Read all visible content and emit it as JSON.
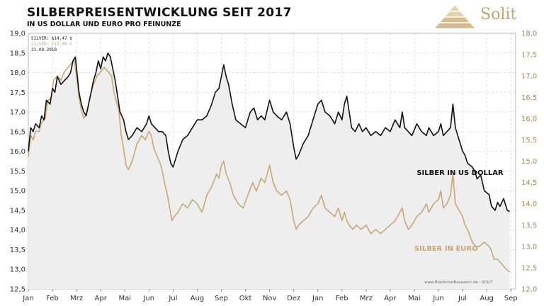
{
  "header": {
    "title": "SILBERPREISENTWICKLUNG SEIT 2017",
    "subtitle": "IN US DOLLAR UND EURO PRO FEINUNZE",
    "brand_name": "Solit"
  },
  "colors": {
    "usd_line": "#111111",
    "eur_line": "#c9a772",
    "area_fill": "#eeeeee",
    "grid": "#d8d8d8",
    "axis_right": "#a88752"
  },
  "chart_data": {
    "type": "line",
    "title": "SILBERPREISENTWICKLUNG SEIT 2017",
    "subtitle": "IN US DOLLAR UND EURO PRO FEINUNZE",
    "x_unit": "months since Jan 2017",
    "x_ticks": [
      {
        "label": "Jan",
        "x": 0
      },
      {
        "label": "Feb",
        "x": 1
      },
      {
        "label": "Mrz",
        "x": 2
      },
      {
        "label": "Apr",
        "x": 3
      },
      {
        "label": "Mai",
        "x": 4
      },
      {
        "label": "Jun",
        "x": 5
      },
      {
        "label": "Jul",
        "x": 6
      },
      {
        "label": "Aug",
        "x": 7
      },
      {
        "label": "Sep",
        "x": 8
      },
      {
        "label": "Okt",
        "x": 9
      },
      {
        "label": "Nov",
        "x": 10
      },
      {
        "label": "Dez",
        "x": 11
      },
      {
        "label": "Jan",
        "x": 12
      },
      {
        "label": "Feb",
        "x": 13
      },
      {
        "label": "Mrz",
        "x": 14
      },
      {
        "label": "Apr",
        "x": 15
      },
      {
        "label": "Mai",
        "x": 16
      },
      {
        "label": "Jun",
        "x": 17
      },
      {
        "label": "Jul",
        "x": 18
      },
      {
        "label": "Aug",
        "x": 19
      },
      {
        "label": "Sep",
        "x": 20
      }
    ],
    "xlim": [
      0,
      20.2
    ],
    "y_left": {
      "ylim": [
        12.5,
        19.0
      ],
      "ticks": [
        "19,0",
        "18,5",
        "18,0",
        "17,5",
        "17,0",
        "16,5",
        "16,0",
        "15,5",
        "15,0",
        "14,5",
        "14,0",
        "13,5",
        "13,0",
        "12,5"
      ]
    },
    "y_right": {
      "ylim": [
        12.0,
        18.0
      ],
      "ticks": [
        "18,0",
        "17,5",
        "17,0",
        "16,5",
        "16,0",
        "15,5",
        "15,0",
        "14,5",
        "14,0",
        "13,5",
        "13,0",
        "12,5",
        "12,0"
      ]
    },
    "grid": true,
    "legend": {
      "position": "top-left",
      "lines": [
        "SILVER: $14,47 $",
        "SILVER: €12,40 €",
        "31.08.2018"
      ]
    },
    "series_labels": {
      "usd": "SILBER IN US DOLLAR",
      "eur": "SILBER IN EURO"
    },
    "source": "www.BlackchatResearch.de - SOLIT",
    "series": [
      {
        "name": "SILBER IN US DOLLAR",
        "axis": "left",
        "points": [
          [
            0.0,
            16.0
          ],
          [
            0.1,
            16.6
          ],
          [
            0.2,
            16.5
          ],
          [
            0.3,
            16.7
          ],
          [
            0.45,
            16.6
          ],
          [
            0.55,
            16.9
          ],
          [
            0.65,
            16.8
          ],
          [
            0.75,
            17.3
          ],
          [
            0.9,
            17.2
          ],
          [
            1.0,
            17.6
          ],
          [
            1.1,
            17.5
          ],
          [
            1.2,
            17.9
          ],
          [
            1.35,
            17.7
          ],
          [
            1.5,
            17.8
          ],
          [
            1.65,
            17.9
          ],
          [
            1.75,
            18.0
          ],
          [
            1.85,
            18.3
          ],
          [
            1.95,
            18.4
          ],
          [
            2.0,
            18.1
          ],
          [
            2.1,
            17.5
          ],
          [
            2.2,
            17.2
          ],
          [
            2.3,
            17.0
          ],
          [
            2.4,
            16.9
          ],
          [
            2.5,
            17.2
          ],
          [
            2.6,
            17.5
          ],
          [
            2.7,
            17.8
          ],
          [
            2.8,
            18.0
          ],
          [
            2.9,
            18.3
          ],
          [
            3.0,
            18.1
          ],
          [
            3.1,
            18.4
          ],
          [
            3.2,
            18.3
          ],
          [
            3.3,
            18.5
          ],
          [
            3.4,
            18.4
          ],
          [
            3.5,
            18.1
          ],
          [
            3.6,
            17.8
          ],
          [
            3.7,
            17.4
          ],
          [
            3.8,
            17.0
          ],
          [
            3.95,
            16.8
          ],
          [
            4.05,
            16.5
          ],
          [
            4.15,
            16.3
          ],
          [
            4.3,
            16.4
          ],
          [
            4.5,
            16.6
          ],
          [
            4.7,
            16.5
          ],
          [
            4.9,
            16.7
          ],
          [
            5.0,
            16.9
          ],
          [
            5.1,
            16.7
          ],
          [
            5.25,
            16.6
          ],
          [
            5.4,
            16.5
          ],
          [
            5.55,
            16.5
          ],
          [
            5.7,
            16.4
          ],
          [
            5.8,
            16.0
          ],
          [
            5.9,
            15.7
          ],
          [
            6.0,
            15.6
          ],
          [
            6.1,
            15.8
          ],
          [
            6.2,
            16.0
          ],
          [
            6.4,
            16.3
          ],
          [
            6.6,
            16.4
          ],
          [
            6.8,
            16.6
          ],
          [
            7.0,
            16.8
          ],
          [
            7.2,
            16.8
          ],
          [
            7.4,
            16.9
          ],
          [
            7.6,
            17.2
          ],
          [
            7.75,
            17.5
          ],
          [
            7.9,
            17.6
          ],
          [
            8.0,
            17.9
          ],
          [
            8.1,
            18.2
          ],
          [
            8.2,
            17.9
          ],
          [
            8.3,
            17.7
          ],
          [
            8.45,
            17.2
          ],
          [
            8.6,
            16.8
          ],
          [
            8.8,
            16.7
          ],
          [
            9.0,
            16.6
          ],
          [
            9.2,
            17.0
          ],
          [
            9.35,
            17.1
          ],
          [
            9.5,
            16.8
          ],
          [
            9.65,
            16.9
          ],
          [
            9.8,
            16.8
          ],
          [
            10.0,
            17.3
          ],
          [
            10.15,
            17.0
          ],
          [
            10.3,
            16.9
          ],
          [
            10.5,
            16.8
          ],
          [
            10.7,
            17.0
          ],
          [
            10.85,
            16.7
          ],
          [
            11.0,
            16.1
          ],
          [
            11.1,
            15.8
          ],
          [
            11.2,
            15.9
          ],
          [
            11.4,
            16.2
          ],
          [
            11.6,
            16.4
          ],
          [
            11.8,
            16.8
          ],
          [
            12.0,
            17.2
          ],
          [
            12.15,
            17.3
          ],
          [
            12.3,
            17.0
          ],
          [
            12.5,
            16.9
          ],
          [
            12.7,
            16.7
          ],
          [
            12.85,
            17.0
          ],
          [
            13.0,
            16.8
          ],
          [
            13.1,
            17.2
          ],
          [
            13.2,
            17.4
          ],
          [
            13.3,
            17.0
          ],
          [
            13.4,
            16.6
          ],
          [
            13.55,
            16.5
          ],
          [
            13.7,
            16.7
          ],
          [
            13.85,
            16.5
          ],
          [
            14.0,
            16.6
          ],
          [
            14.2,
            16.4
          ],
          [
            14.4,
            16.5
          ],
          [
            14.6,
            16.4
          ],
          [
            14.8,
            16.6
          ],
          [
            15.0,
            16.5
          ],
          [
            15.2,
            16.8
          ],
          [
            15.4,
            16.6
          ],
          [
            15.5,
            17.0
          ],
          [
            15.6,
            16.6
          ],
          [
            15.75,
            16.5
          ],
          [
            15.9,
            16.4
          ],
          [
            16.1,
            16.7
          ],
          [
            16.3,
            16.5
          ],
          [
            16.5,
            16.4
          ],
          [
            16.6,
            16.6
          ],
          [
            16.8,
            16.4
          ],
          [
            17.0,
            16.5
          ],
          [
            17.1,
            16.7
          ],
          [
            17.2,
            16.4
          ],
          [
            17.35,
            16.5
          ],
          [
            17.5,
            16.6
          ],
          [
            17.6,
            17.2
          ],
          [
            17.7,
            16.6
          ],
          [
            17.9,
            16.2
          ],
          [
            18.0,
            16.0
          ],
          [
            18.1,
            15.9
          ],
          [
            18.2,
            15.7
          ],
          [
            18.4,
            15.6
          ],
          [
            18.5,
            15.5
          ],
          [
            18.6,
            15.3
          ],
          [
            18.75,
            15.4
          ],
          [
            18.9,
            15.0
          ],
          [
            19.1,
            14.9
          ],
          [
            19.2,
            14.6
          ],
          [
            19.35,
            14.5
          ],
          [
            19.45,
            14.7
          ],
          [
            19.55,
            14.6
          ],
          [
            19.7,
            14.8
          ],
          [
            19.85,
            14.5
          ],
          [
            19.95,
            14.47
          ]
        ]
      },
      {
        "name": "SILBER IN EURO",
        "axis": "right",
        "points": [
          [
            0.0,
            15.1
          ],
          [
            0.1,
            15.6
          ],
          [
            0.2,
            15.5
          ],
          [
            0.3,
            15.7
          ],
          [
            0.45,
            15.7
          ],
          [
            0.55,
            15.9
          ],
          [
            0.7,
            16.0
          ],
          [
            0.8,
            16.4
          ],
          [
            0.95,
            16.5
          ],
          [
            1.05,
            16.9
          ],
          [
            1.2,
            17.0
          ],
          [
            1.35,
            16.9
          ],
          [
            1.5,
            17.1
          ],
          [
            1.65,
            17.2
          ],
          [
            1.8,
            17.3
          ],
          [
            1.9,
            17.4
          ],
          [
            2.0,
            17.0
          ],
          [
            2.1,
            16.5
          ],
          [
            2.2,
            16.2
          ],
          [
            2.3,
            16.0
          ],
          [
            2.4,
            16.1
          ],
          [
            2.55,
            16.5
          ],
          [
            2.7,
            16.8
          ],
          [
            2.85,
            17.0
          ],
          [
            3.0,
            17.1
          ],
          [
            3.15,
            17.2
          ],
          [
            3.3,
            17.1
          ],
          [
            3.45,
            17.0
          ],
          [
            3.55,
            16.6
          ],
          [
            3.65,
            16.4
          ],
          [
            3.75,
            16.2
          ],
          [
            3.85,
            15.6
          ],
          [
            3.95,
            15.3
          ],
          [
            4.05,
            14.9
          ],
          [
            4.15,
            14.8
          ],
          [
            4.3,
            15.0
          ],
          [
            4.5,
            15.4
          ],
          [
            4.7,
            15.6
          ],
          [
            4.85,
            15.5
          ],
          [
            5.0,
            15.7
          ],
          [
            5.1,
            15.6
          ],
          [
            5.2,
            15.3
          ],
          [
            5.35,
            15.1
          ],
          [
            5.5,
            14.9
          ],
          [
            5.65,
            14.5
          ],
          [
            5.8,
            14.1
          ],
          [
            5.95,
            13.6
          ],
          [
            6.05,
            13.7
          ],
          [
            6.2,
            13.8
          ],
          [
            6.4,
            14.0
          ],
          [
            6.6,
            13.9
          ],
          [
            6.8,
            14.1
          ],
          [
            7.0,
            14.0
          ],
          [
            7.2,
            13.8
          ],
          [
            7.4,
            14.2
          ],
          [
            7.6,
            14.4
          ],
          [
            7.8,
            14.7
          ],
          [
            7.9,
            14.6
          ],
          [
            8.0,
            14.9
          ],
          [
            8.1,
            15.0
          ],
          [
            8.2,
            14.7
          ],
          [
            8.35,
            14.5
          ],
          [
            8.5,
            14.2
          ],
          [
            8.7,
            14.0
          ],
          [
            8.9,
            13.9
          ],
          [
            9.1,
            14.2
          ],
          [
            9.3,
            14.5
          ],
          [
            9.45,
            14.3
          ],
          [
            9.65,
            14.6
          ],
          [
            9.8,
            14.5
          ],
          [
            10.0,
            14.9
          ],
          [
            10.15,
            14.5
          ],
          [
            10.3,
            14.3
          ],
          [
            10.5,
            14.2
          ],
          [
            10.7,
            14.3
          ],
          [
            10.85,
            14.1
          ],
          [
            11.0,
            13.6
          ],
          [
            11.1,
            13.4
          ],
          [
            11.2,
            13.5
          ],
          [
            11.4,
            13.6
          ],
          [
            11.6,
            13.7
          ],
          [
            11.8,
            13.9
          ],
          [
            12.0,
            14.0
          ],
          [
            12.15,
            14.2
          ],
          [
            12.3,
            13.9
          ],
          [
            12.5,
            13.8
          ],
          [
            12.7,
            13.7
          ],
          [
            12.85,
            13.9
          ],
          [
            13.0,
            13.6
          ],
          [
            13.1,
            13.8
          ],
          [
            13.2,
            13.6
          ],
          [
            13.3,
            13.5
          ],
          [
            13.45,
            13.4
          ],
          [
            13.6,
            13.5
          ],
          [
            13.8,
            13.4
          ],
          [
            14.0,
            13.5
          ],
          [
            14.2,
            13.3
          ],
          [
            14.4,
            13.4
          ],
          [
            14.6,
            13.3
          ],
          [
            14.8,
            13.4
          ],
          [
            15.0,
            13.5
          ],
          [
            15.2,
            13.6
          ],
          [
            15.4,
            13.8
          ],
          [
            15.5,
            13.9
          ],
          [
            15.6,
            13.6
          ],
          [
            15.75,
            13.4
          ],
          [
            15.9,
            13.5
          ],
          [
            16.1,
            13.7
          ],
          [
            16.3,
            13.8
          ],
          [
            16.5,
            14.0
          ],
          [
            16.6,
            13.8
          ],
          [
            16.8,
            14.0
          ],
          [
            17.0,
            14.1
          ],
          [
            17.1,
            14.3
          ],
          [
            17.2,
            13.9
          ],
          [
            17.35,
            14.0
          ],
          [
            17.5,
            14.2
          ],
          [
            17.6,
            14.7
          ],
          [
            17.7,
            14.0
          ],
          [
            17.9,
            13.8
          ],
          [
            18.0,
            13.7
          ],
          [
            18.1,
            13.5
          ],
          [
            18.2,
            13.4
          ],
          [
            18.4,
            13.1
          ],
          [
            18.55,
            13.0
          ],
          [
            18.7,
            13.0
          ],
          [
            18.9,
            13.1
          ],
          [
            19.1,
            13.0
          ],
          [
            19.2,
            12.9
          ],
          [
            19.3,
            12.7
          ],
          [
            19.45,
            12.7
          ],
          [
            19.6,
            12.6
          ],
          [
            19.75,
            12.5
          ],
          [
            19.95,
            12.4
          ]
        ]
      }
    ]
  }
}
